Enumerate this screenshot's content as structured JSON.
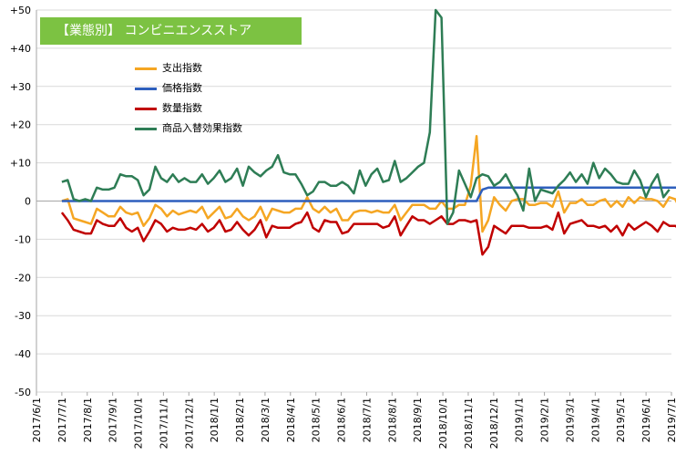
{
  "chart_data": {
    "type": "line",
    "title": "【業態別】 コンビニエンスストア",
    "ylim": [
      -50,
      50
    ],
    "yticks": [
      "+50",
      "+40",
      "+30",
      "+20",
      "+10",
      "0",
      "-10",
      "-20",
      "-30",
      "-40",
      "-50"
    ],
    "x_tick_labels": [
      "2017/6/1",
      "2017/7/1",
      "2017/8/1",
      "2017/9/1",
      "2017/10/1",
      "2017/11/1",
      "2017/12/1",
      "2018/1/1",
      "2018/2/1",
      "2018/3/1",
      "2018/4/1",
      "2018/5/1",
      "2018/6/1",
      "2018/7/1",
      "2018/8/1",
      "2018/9/1",
      "2018/10/1",
      "2018/11/1",
      "2018/12/1",
      "2019/1/1",
      "2019/2/1",
      "2019/3/1",
      "2019/4/1",
      "2019/5/1",
      "2019/6/1",
      "2019/7/1"
    ],
    "x_unit": "week",
    "x_start": "2017/7/1",
    "grid": {
      "horizontal": true,
      "vertical": false
    },
    "legend_position": "top-left",
    "series": [
      {
        "name": "支出指数",
        "color": "#f5a623",
        "values": [
          -1,
          -2,
          -5,
          -5.5,
          -6,
          -6,
          -2,
          -3,
          -4,
          -4,
          -1.5,
          -3,
          -3.5,
          -3,
          -6.5,
          -4.5,
          -1,
          -2,
          -4,
          -2.5,
          -3.5,
          -3,
          -2.5,
          -3,
          -1.5,
          -4.5,
          -3,
          -1.5,
          -4.5,
          -4,
          -2,
          -4,
          -5,
          -4,
          -1.5,
          -5,
          -2,
          -2.5,
          -3,
          -3,
          -2,
          -2,
          1,
          -2,
          -3,
          -1.5,
          -3,
          -2,
          -5,
          -5,
          -3,
          -2.5,
          -2.5,
          -3,
          -2.5,
          -3,
          -3,
          -1,
          -5,
          -3,
          -1,
          -1,
          -1,
          -2,
          -2,
          0,
          -2,
          -2,
          -1,
          -1,
          4,
          17,
          -8,
          -5,
          0,
          -1,
          -2.5,
          -0.5,
          0,
          0,
          -1,
          -1,
          -0.5,
          -0.5,
          -1,
          2.5,
          -0.5,
          -0.5,
          -0.5,
          -1,
          0.5,
          -1,
          -1,
          0,
          -0.5,
          0,
          -1,
          0.5,
          -1,
          0.5,
          0.5,
          0,
          0.5,
          -0.5,
          0.5,
          0.5,
          -2.5,
          1,
          1.5,
          -3,
          0
        ],
        "draw_values": [
          0,
          0.5,
          -4.5,
          -5,
          -5.5,
          -6,
          -2,
          -3,
          -4,
          -4,
          -1.5,
          -3,
          -3.5,
          -3,
          -6.5,
          -4.5,
          -1,
          -2,
          -4,
          -2.5,
          -3.5,
          -3,
          -2.5,
          -3,
          -1.5,
          -4.5,
          -3,
          -1.5,
          -4.5,
          -4,
          -2,
          -4,
          -5,
          -4,
          -1.5,
          -5,
          -2,
          -2.5,
          -3,
          -3,
          -2,
          -2,
          1,
          -2,
          -3,
          -1.5,
          -3,
          -2,
          -5,
          -5,
          -3,
          -2.5,
          -2.5,
          -3,
          -2.5,
          -3,
          -3,
          -1,
          -5,
          -3,
          -1,
          -1,
          -1,
          -2,
          -2,
          0,
          -2,
          -2,
          -1,
          -1,
          4,
          17,
          -8,
          -5,
          1,
          -1,
          -2.5,
          0,
          0.5,
          0.5,
          -1,
          -1,
          -0.5,
          -0.5,
          -1.5,
          2.5,
          -3,
          -0.5,
          -0.5,
          0.5,
          -1,
          -1,
          0,
          0.5,
          -1.5,
          0,
          -1.5,
          1,
          -0.5,
          1,
          0.5,
          0.5,
          0,
          -1.5,
          1,
          0.5,
          -2.5,
          1,
          1,
          -3,
          0
        ]
      },
      {
        "name": "価格指数",
        "color": "#2e5fbd",
        "values": [
          0,
          0,
          0,
          0,
          0,
          0,
          0,
          0,
          0,
          0,
          0,
          0,
          0,
          0,
          0,
          0,
          0,
          0,
          0,
          0,
          0,
          0,
          0,
          0,
          0,
          0,
          0,
          0,
          0,
          0,
          0,
          0,
          0,
          0,
          0,
          0,
          0,
          0,
          0,
          0,
          0,
          0,
          0,
          0,
          0,
          0,
          0,
          0,
          0,
          0,
          0,
          0,
          0,
          0,
          0,
          0,
          0,
          0,
          0,
          0,
          0,
          0,
          0,
          0,
          0,
          0,
          0,
          0,
          0,
          0,
          0,
          0,
          3,
          3.5,
          3.5,
          3.5,
          3.5,
          3.5,
          3.5,
          3.5,
          3.5,
          3.5,
          3.5,
          3.5,
          3.5,
          3.5,
          3.5,
          3.5,
          3.5,
          3.5,
          3.5,
          3.5,
          3.5,
          3.5,
          3.5,
          3.5,
          3.5,
          3.5,
          3.5,
          3.5,
          3.5,
          3.5,
          3.5,
          3.5,
          3.5,
          3.5,
          3.5,
          3.5,
          3.5,
          3.5,
          3.5
        ]
      },
      {
        "name": "数量指数",
        "color": "#c00000",
        "values": [
          -3,
          -5,
          -7.5,
          -8,
          -8.5,
          -8.5,
          -5,
          -6,
          -6.5,
          -6.5,
          -4.5,
          -7,
          -8,
          -7,
          -10.5,
          -8,
          -5,
          -6,
          -8,
          -7,
          -7.5,
          -7.5,
          -7,
          -7.5,
          -6,
          -8,
          -7,
          -5,
          -8,
          -7.5,
          -5.5,
          -7.5,
          -9,
          -7.5,
          -5,
          -9.5,
          -6.5,
          -7,
          -7,
          -7,
          -6,
          -5.5,
          -3,
          -7,
          -8,
          -5,
          -5.5,
          -5.5,
          -8.5,
          -8,
          -6,
          -6,
          -6,
          -6,
          -6,
          -7,
          -6.5,
          -4,
          -9,
          -6.5,
          -4,
          -5,
          -5,
          -6,
          -5,
          -4,
          -6,
          -6,
          -5,
          -5,
          -5.5,
          -5,
          -14,
          -12,
          -6,
          -7,
          -8,
          -6.5,
          -6.5,
          -6.5,
          -7,
          -7,
          -7,
          -6.5,
          -7,
          -3,
          -8.5,
          -6,
          -5.5,
          -5,
          -6.5,
          -6.5,
          -7,
          -6.5,
          -8,
          -6.5,
          -9,
          -6,
          -7,
          -6.5,
          -6,
          -6.5,
          -7,
          -5.5,
          -6.5,
          -6.5,
          -7.5,
          -5.5,
          -6,
          -8.5,
          -5.5
        ],
        "draw_values": [
          -3,
          -5,
          -7.5,
          -8,
          -8.5,
          -8.5,
          -5,
          -6,
          -6.5,
          -6.5,
          -4.5,
          -7,
          -8,
          -7,
          -10.5,
          -8,
          -5,
          -6,
          -8,
          -7,
          -7.5,
          -7.5,
          -7,
          -7.5,
          -6,
          -8,
          -7,
          -5,
          -8,
          -7.5,
          -5.5,
          -7.5,
          -9,
          -7.5,
          -5,
          -9.5,
          -6.5,
          -7,
          -7,
          -7,
          -6,
          -5.5,
          -3,
          -7,
          -8,
          -5,
          -5.5,
          -5.5,
          -8.5,
          -8,
          -6,
          -6,
          -6,
          -6,
          -6,
          -7,
          -6.5,
          -4,
          -9,
          -6.5,
          -4,
          -5,
          -5,
          -6,
          -5,
          -4,
          -6,
          -6,
          -5,
          -5,
          -5.5,
          -5,
          -14,
          -12,
          -6.5,
          -7.5,
          -8.5,
          -6.5,
          -6.5,
          -6.5,
          -7,
          -7,
          -7,
          -6.5,
          -7.5,
          -3,
          -8.5,
          -6,
          -5.5,
          -5,
          -6.5,
          -6.5,
          -7,
          -6.5,
          -8,
          -6.5,
          -9,
          -6,
          -7.5,
          -6.5,
          -5.5,
          -6.5,
          -8,
          -5.5,
          -6.5,
          -6.5,
          -7.5,
          -5.5,
          -6,
          -8.5,
          -5.5
        ]
      },
      {
        "name": "商品入替効果指数",
        "color": "#2e7d55",
        "values": [
          5,
          5.5,
          0.5,
          0,
          0.5,
          0,
          3.5,
          3,
          3,
          3.5,
          7,
          6.5,
          6.5,
          5.5,
          1.5,
          3,
          9,
          6,
          5,
          7,
          5,
          6,
          5,
          5,
          7,
          4.5,
          6,
          8,
          5,
          6,
          8.5,
          4,
          9,
          7.5,
          6.5,
          8,
          9,
          12,
          7.5,
          7,
          7,
          4.5,
          1.5,
          2.5,
          5,
          5,
          4,
          4,
          5,
          4,
          2,
          8,
          4,
          7,
          8.5,
          5,
          5.5,
          10.5,
          5,
          6,
          7.5,
          9,
          10,
          18,
          50,
          48,
          -6,
          -3,
          8,
          4.5,
          1,
          6,
          7,
          6.5,
          4,
          5,
          7,
          4,
          1.5,
          -2.5,
          8.5,
          0,
          3,
          2.5,
          2,
          4,
          5.5,
          7.5,
          5,
          7,
          4.5,
          10,
          6,
          8.5,
          7,
          5,
          4.5,
          4.5,
          8,
          5.5,
          1,
          4.5,
          7,
          1,
          3
        ],
        "draw_values": [
          5,
          5.5,
          0.5,
          0,
          0.5,
          0,
          3.5,
          3,
          3,
          3.5,
          7,
          6.5,
          6.5,
          5.5,
          1.5,
          3,
          9,
          6,
          5,
          7,
          5,
          6,
          5,
          5,
          7,
          4.5,
          6,
          8,
          5,
          6,
          8.5,
          4,
          9,
          7.5,
          6.5,
          8,
          9,
          12,
          7.5,
          7,
          7,
          4.5,
          1.5,
          2.5,
          5,
          5,
          4,
          4,
          5,
          4,
          2,
          8,
          4,
          7,
          8.5,
          5,
          5.5,
          10.5,
          5,
          6,
          7.5,
          9,
          10,
          18,
          50,
          48,
          -6,
          -3,
          8,
          4.5,
          1,
          6,
          7,
          6.5,
          4,
          5,
          7,
          4,
          1.5,
          -2.5,
          8.5,
          0,
          3,
          2.5,
          2,
          4,
          5.5,
          7.5,
          5,
          7,
          4.5,
          10,
          6,
          8.5,
          7,
          5,
          4.5,
          4.5,
          8,
          5.5,
          1,
          4.5,
          7,
          1,
          3
        ]
      }
    ]
  }
}
